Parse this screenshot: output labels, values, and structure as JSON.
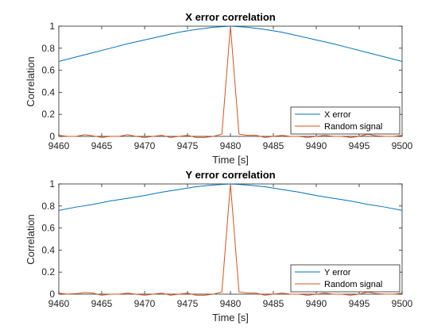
{
  "colors": {
    "series1": "#0072BD",
    "series2": "#D95319",
    "axis": "#262626",
    "background": "#ffffff"
  },
  "chart_data": [
    {
      "type": "line",
      "title": "X error correlation",
      "xlabel": "Time [s]",
      "ylabel": "Correlation",
      "xlim": [
        9460,
        9500
      ],
      "ylim": [
        0,
        1
      ],
      "xticks": [
        "9460",
        "9465",
        "9470",
        "9475",
        "9480",
        "9485",
        "9490",
        "9495",
        "9500"
      ],
      "yticks": [
        "0",
        "0.2",
        "0.4",
        "0.6",
        "0.8",
        "1"
      ],
      "grid": false,
      "legend": "bottom-right",
      "series": [
        {
          "name": "X error",
          "color": "#0072BD",
          "x": [
            9460,
            9462,
            9464,
            9466,
            9468,
            9470,
            9472,
            9474,
            9476,
            9478,
            9480,
            9482,
            9484,
            9486,
            9488,
            9490,
            9492,
            9494,
            9496,
            9498,
            9500
          ],
          "y": [
            0.68,
            0.72,
            0.76,
            0.8,
            0.84,
            0.875,
            0.91,
            0.945,
            0.97,
            0.99,
            1.0,
            0.99,
            0.97,
            0.945,
            0.91,
            0.875,
            0.84,
            0.8,
            0.76,
            0.72,
            0.68
          ]
        },
        {
          "name": "Random signal",
          "color": "#D95319",
          "x": [
            9460,
            9461,
            9462,
            9463,
            9464,
            9465,
            9466,
            9467,
            9468,
            9469,
            9470,
            9471,
            9472,
            9473,
            9474,
            9475,
            9476,
            9477,
            9478,
            9479,
            9480,
            9481,
            9482,
            9483,
            9484,
            9485,
            9486,
            9487,
            9488,
            9489,
            9490,
            9491,
            9492,
            9493,
            9494,
            9495,
            9496,
            9497,
            9498,
            9499,
            9500
          ],
          "y": [
            0.01,
            0.0,
            0.0,
            0.015,
            0.005,
            -0.01,
            0.0,
            0.0,
            0.015,
            0.0,
            -0.01,
            0.0,
            0.01,
            -0.01,
            0.0,
            0.01,
            -0.01,
            -0.01,
            0.0,
            0.02,
            1.0,
            0.02,
            0.01,
            0.01,
            -0.01,
            0.0,
            0.01,
            0.0,
            0.0,
            -0.01,
            0.0,
            0.01,
            0.0,
            0.0,
            -0.01,
            0.0,
            0.02,
            0.005,
            0.0,
            0.0,
            0.01
          ]
        }
      ]
    },
    {
      "type": "line",
      "title": "Y error correlation",
      "xlabel": "Time [s]",
      "ylabel": "Correlation",
      "xlim": [
        9460,
        9500
      ],
      "ylim": [
        0,
        1
      ],
      "xticks": [
        "9460",
        "9465",
        "9470",
        "9475",
        "9480",
        "9485",
        "9490",
        "9495",
        "9500"
      ],
      "yticks": [
        "0",
        "0.2",
        "0.4",
        "0.6",
        "0.8",
        "1"
      ],
      "grid": false,
      "legend": "bottom-right",
      "series": [
        {
          "name": "Y error",
          "color": "#0072BD",
          "x": [
            9460,
            9462,
            9464,
            9466,
            9468,
            9470,
            9472,
            9474,
            9476,
            9478,
            9480,
            9482,
            9484,
            9486,
            9488,
            9490,
            9492,
            9494,
            9496,
            9498,
            9500
          ],
          "y": [
            0.76,
            0.79,
            0.815,
            0.845,
            0.87,
            0.895,
            0.925,
            0.95,
            0.975,
            0.99,
            1.0,
            0.99,
            0.975,
            0.95,
            0.925,
            0.895,
            0.87,
            0.845,
            0.815,
            0.79,
            0.76
          ]
        },
        {
          "name": "Random signal",
          "color": "#D95319",
          "x": [
            9460,
            9461,
            9462,
            9463,
            9464,
            9465,
            9466,
            9467,
            9468,
            9469,
            9470,
            9471,
            9472,
            9473,
            9474,
            9475,
            9476,
            9477,
            9478,
            9479,
            9480,
            9481,
            9482,
            9483,
            9484,
            9485,
            9486,
            9487,
            9488,
            9489,
            9490,
            9491,
            9492,
            9493,
            9494,
            9495,
            9496,
            9497,
            9498,
            9499,
            9500
          ],
          "y": [
            0.01,
            0.0,
            0.005,
            0.015,
            0.01,
            -0.01,
            0.0,
            0.0,
            0.01,
            0.0,
            -0.01,
            0.0,
            0.01,
            -0.01,
            0.0,
            0.01,
            -0.01,
            -0.01,
            0.0,
            0.02,
            1.0,
            0.02,
            0.01,
            0.01,
            -0.01,
            0.0,
            0.01,
            0.0,
            0.0,
            -0.01,
            0.0,
            0.01,
            0.0,
            0.0,
            -0.01,
            0.0,
            0.02,
            0.005,
            0.0,
            0.0,
            0.01
          ]
        }
      ]
    }
  ]
}
